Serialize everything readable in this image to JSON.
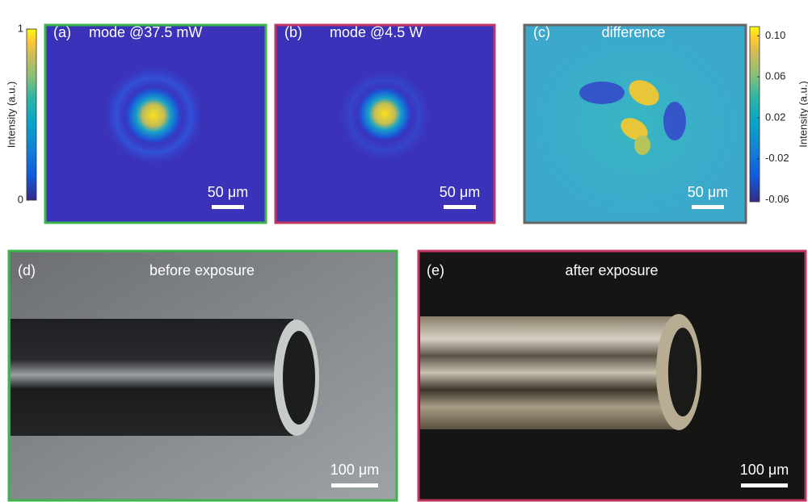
{
  "colorbars": [
    {
      "label": "Intensity (a.u.)",
      "lim": [
        0,
        1
      ],
      "ticks": [
        0,
        1
      ]
    },
    {
      "label": "Intensity (a.u.)",
      "lim": [
        -0.062,
        0.109
      ],
      "ticks": [
        {
          "value": 0.1,
          "label": "0.10"
        },
        {
          "value": 0.06,
          "label": "0.06"
        },
        {
          "value": 0.02,
          "label": "0.02"
        },
        {
          "value": -0.02,
          "label": "-0.02"
        },
        {
          "value": -0.06,
          "label": "-0.06"
        }
      ]
    }
  ],
  "panels": [
    {
      "label": "(a)",
      "title": "mode @37.5 mW",
      "scale_bar": "50 μm"
    },
    {
      "label": "(b)",
      "title": "mode @4.5 W",
      "scale_bar": "50 μm"
    },
    {
      "label": "(c)",
      "title": "difference",
      "scale_bar": "50 μm"
    },
    {
      "label": "(d)",
      "title": "before exposure",
      "scale_bar": "100 μm"
    },
    {
      "label": "(e)",
      "title": "after exposure",
      "scale_bar": "100 μm"
    }
  ]
}
